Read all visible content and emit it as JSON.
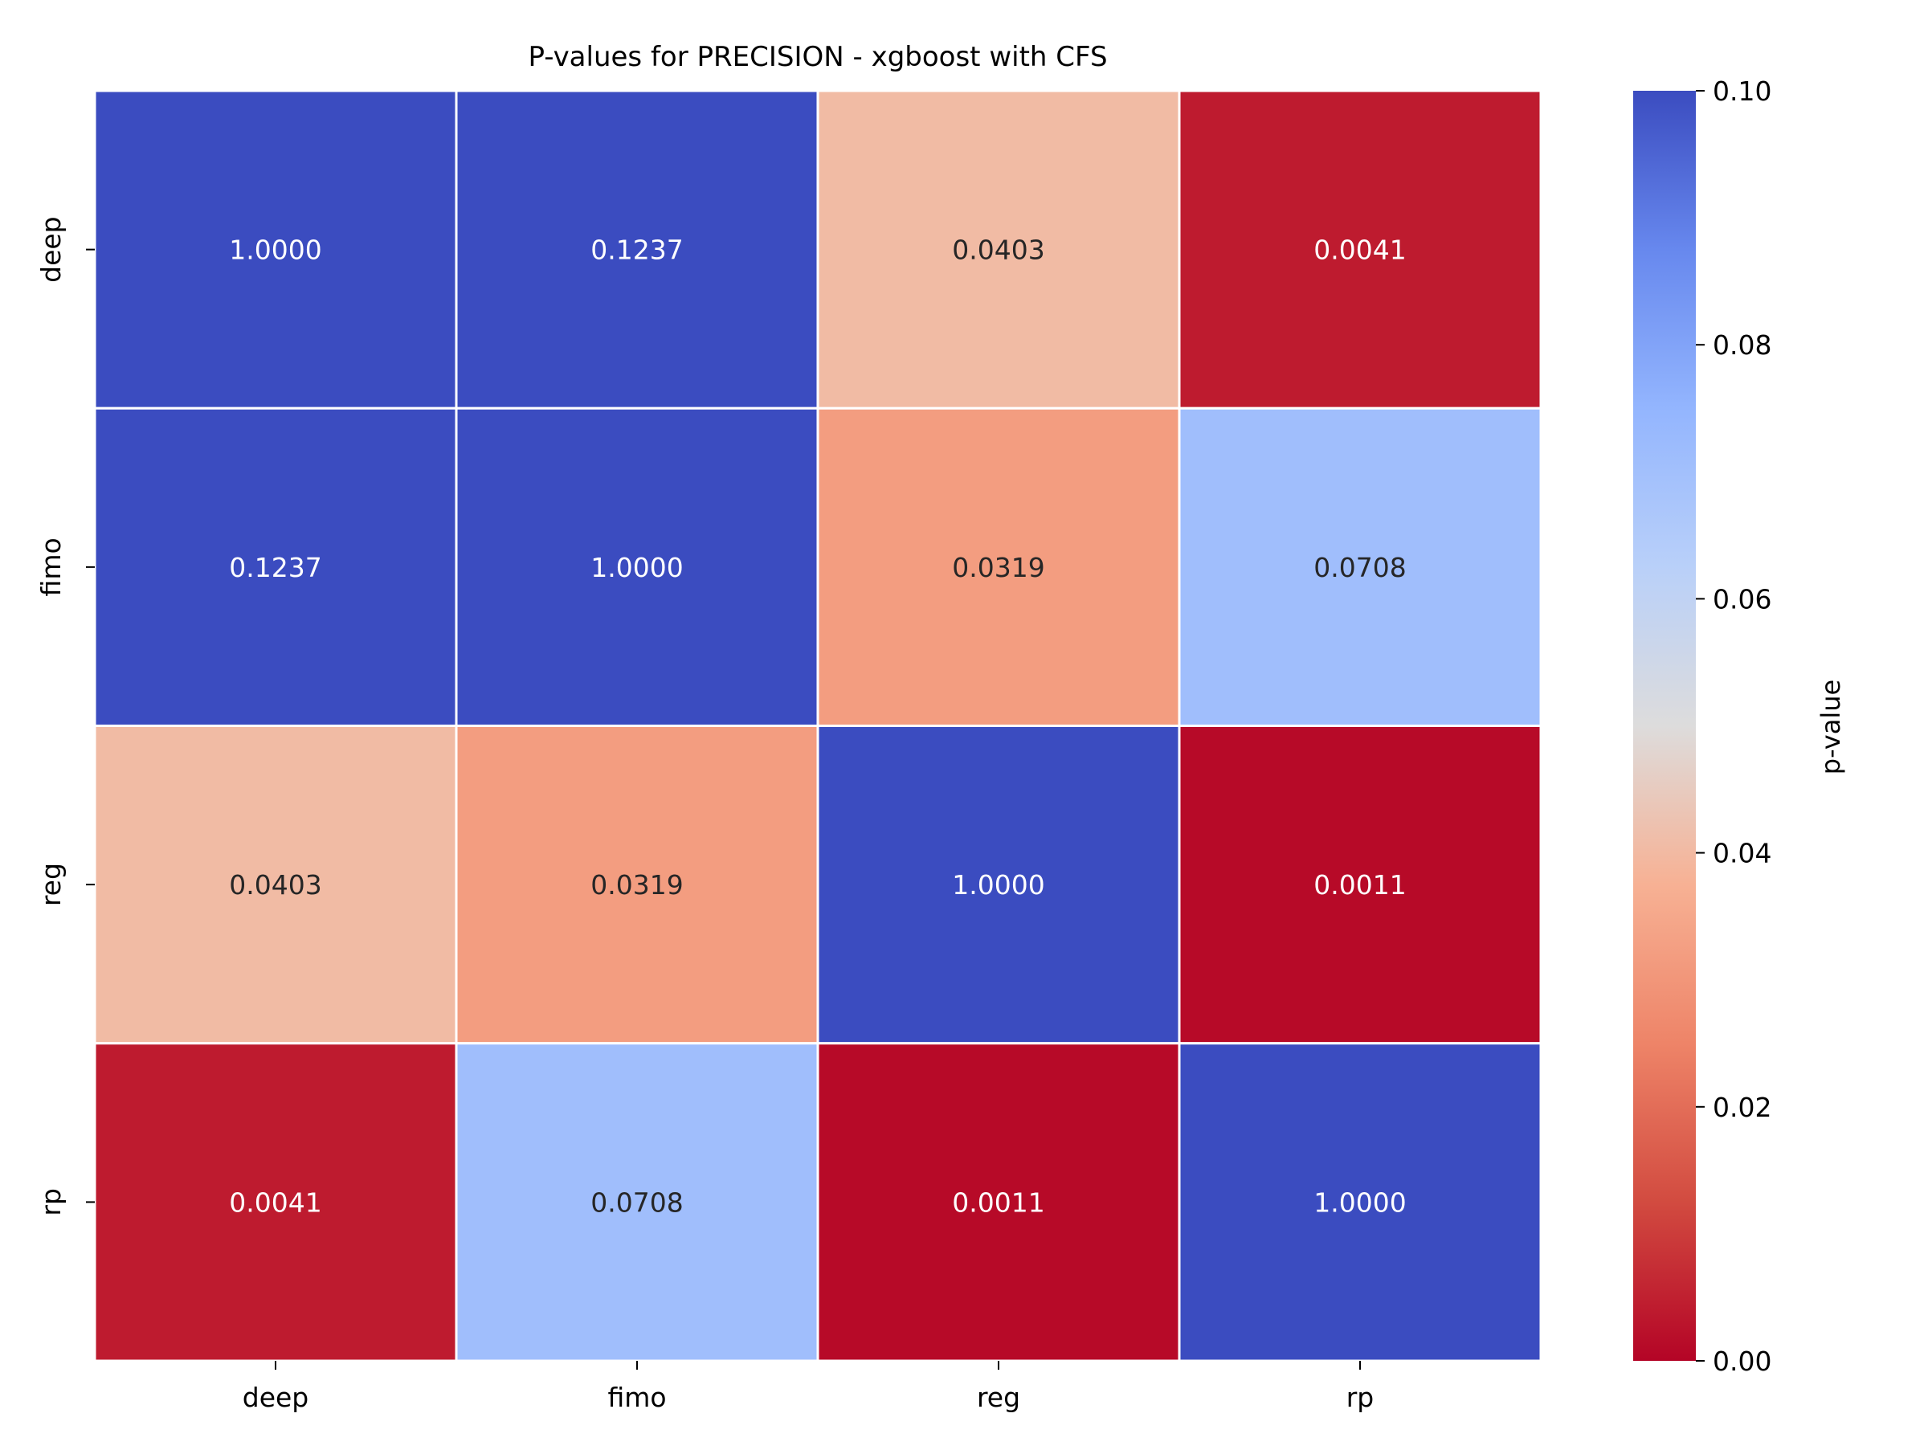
{
  "chart_data": {
    "type": "heatmap",
    "title": "P-values for PRECISION - xgboost with CFS",
    "rows": [
      "deep",
      "fimo",
      "reg",
      "rp"
    ],
    "columns": [
      "deep",
      "fimo",
      "reg",
      "rp"
    ],
    "values": [
      [
        1.0,
        0.1237,
        0.0403,
        0.0041
      ],
      [
        0.1237,
        1.0,
        0.0319,
        0.0708
      ],
      [
        0.0403,
        0.0319,
        1.0,
        0.0011
      ],
      [
        0.0041,
        0.0708,
        0.0011,
        1.0
      ]
    ],
    "cell_labels": [
      [
        "1.0000",
        "0.1237",
        "0.0403",
        "0.0041"
      ],
      [
        "0.1237",
        "1.0000",
        "0.0319",
        "0.0708"
      ],
      [
        "0.0403",
        "0.0319",
        "1.0000",
        "0.0011"
      ],
      [
        "0.0041",
        "0.0708",
        "0.0011",
        "1.0000"
      ]
    ],
    "colorbar": {
      "label": "p-value",
      "range": [
        0,
        0.1
      ],
      "ticks": [
        "0.00",
        "0.02",
        "0.04",
        "0.06",
        "0.08",
        "0.10"
      ],
      "colormap": "coolwarm_r"
    },
    "grid": true,
    "legend": "colorbar-right"
  }
}
